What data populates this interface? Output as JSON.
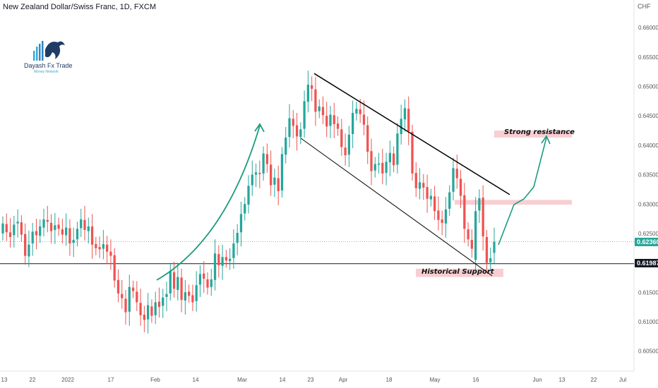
{
  "title": "New Zealand Dollar/Swiss Franc, 1D, FXCM",
  "currency": "CHF",
  "logo": {
    "name": "Dayash Fx Trade",
    "tagline": "Money Network"
  },
  "colors": {
    "up": "#26a69a",
    "down": "#ef5350",
    "zone": "#f7c6cb",
    "current_price_tag": "#26a69a",
    "support_price_tag": "#131722"
  },
  "zones": {
    "resistance_label": "Strong resistance",
    "support_label": "Historical Support"
  },
  "price_tags": {
    "current": "0.62360",
    "support": "0.61987"
  },
  "chart_data": {
    "type": "candlestick",
    "title": "New Zealand Dollar/Swiss Franc, 1D, FXCM",
    "y_axis": {
      "unit": "CHF",
      "range": [
        0.6016,
        0.6647
      ],
      "ticks": [
        "0.66000",
        "0.65500",
        "0.65000",
        "0.64500",
        "0.64000",
        "0.63500",
        "0.63000",
        "0.62500",
        "0.62000",
        "0.61500",
        "0.61000",
        "0.60500"
      ]
    },
    "x_axis": {
      "ticks": [
        "13",
        "22",
        "2022",
        "17",
        "Feb",
        "14",
        "Mar",
        "14",
        "23",
        "Apr",
        "18",
        "May",
        "16",
        "Jun",
        "13",
        "22",
        "Jul"
      ]
    },
    "current_price": 0.6236,
    "support_level": 0.61987,
    "resistance_zone": [
      0.6299,
      0.6307
    ],
    "support_zone": [
      0.6176,
      0.619
    ],
    "target_zone": [
      0.6413,
      0.6425
    ],
    "channel": {
      "upper": {
        "from": [
          "Mar 23",
          0.6522
        ],
        "to": [
          "Jun 2",
          0.6316
        ]
      },
      "lower": {
        "from": [
          "Mar 21",
          0.6412
        ],
        "to": [
          "May 24",
          0.6178
        ]
      }
    },
    "closes": [
      0.6267,
      0.6252,
      0.6244,
      0.6265,
      0.627,
      0.6248,
      0.6212,
      0.6231,
      0.6253,
      0.6247,
      0.6262,
      0.6274,
      0.627,
      0.6254,
      0.6264,
      0.6258,
      0.6248,
      0.626,
      0.6233,
      0.6239,
      0.6258,
      0.6274,
      0.6256,
      0.6262,
      0.6231,
      0.6225,
      0.6223,
      0.6232,
      0.6219,
      0.6212,
      0.617,
      0.6148,
      0.614,
      0.6116,
      0.6159,
      0.6152,
      0.6133,
      0.6111,
      0.6103,
      0.6128,
      0.611,
      0.6133,
      0.6125,
      0.6141,
      0.6147,
      0.6186,
      0.6156,
      0.6176,
      0.6137,
      0.615,
      0.6144,
      0.6133,
      0.6162,
      0.6181,
      0.6173,
      0.6158,
      0.6172,
      0.6216,
      0.6196,
      0.621,
      0.6204,
      0.6207,
      0.6233,
      0.6251,
      0.6283,
      0.63,
      0.6331,
      0.635,
      0.6354,
      0.6351,
      0.6386,
      0.6368,
      0.6332,
      0.6345,
      0.6322,
      0.6385,
      0.6413,
      0.6446,
      0.6433,
      0.6415,
      0.6427,
      0.6475,
      0.6503,
      0.6496,
      0.6457,
      0.6466,
      0.6451,
      0.6432,
      0.6452,
      0.6436,
      0.6428,
      0.6397,
      0.6383,
      0.6418,
      0.6455,
      0.6462,
      0.6453,
      0.6435,
      0.6389,
      0.6356,
      0.6368,
      0.6369,
      0.6352,
      0.6372,
      0.6387,
      0.6366,
      0.642,
      0.6445,
      0.6463,
      0.6424,
      0.6352,
      0.6327,
      0.6337,
      0.6328,
      0.6309,
      0.6314,
      0.6288,
      0.6273,
      0.6268,
      0.6291,
      0.632,
      0.6361,
      0.6344,
      0.6314,
      0.6258,
      0.624,
      0.6224,
      0.6288,
      0.631,
      0.6245,
      0.62,
      0.6208,
      0.6236
    ],
    "opens": [
      0.625,
      0.6266,
      0.6252,
      0.6247,
      0.6267,
      0.6269,
      0.6249,
      0.6211,
      0.6233,
      0.6254,
      0.6246,
      0.626,
      0.6273,
      0.6268,
      0.6256,
      0.6265,
      0.6257,
      0.6247,
      0.6259,
      0.6234,
      0.624,
      0.6259,
      0.6273,
      0.6254,
      0.6262,
      0.6232,
      0.6227,
      0.6224,
      0.6231,
      0.6219,
      0.6213,
      0.6171,
      0.6147,
      0.6139,
      0.6117,
      0.6158,
      0.6151,
      0.6132,
      0.6112,
      0.6104,
      0.6126,
      0.6111,
      0.6134,
      0.6127,
      0.6142,
      0.6148,
      0.6184,
      0.6154,
      0.6175,
      0.6136,
      0.6151,
      0.6145,
      0.6135,
      0.6163,
      0.6182,
      0.6172,
      0.6159,
      0.6171,
      0.6215,
      0.6195,
      0.621,
      0.6203,
      0.6208,
      0.6234,
      0.6252,
      0.6284,
      0.6299,
      0.6332,
      0.635,
      0.6353,
      0.6352,
      0.6385,
      0.6367,
      0.6333,
      0.6344,
      0.6323,
      0.6384,
      0.6414,
      0.6445,
      0.6434,
      0.6414,
      0.6428,
      0.6474,
      0.6502,
      0.6495,
      0.6458,
      0.6465,
      0.645,
      0.6433,
      0.6451,
      0.6437,
      0.6427,
      0.6396,
      0.6384,
      0.6419,
      0.6454,
      0.6461,
      0.6452,
      0.6434,
      0.639,
      0.6357,
      0.6367,
      0.637,
      0.6353,
      0.6371,
      0.6386,
      0.6367,
      0.6419,
      0.6444,
      0.6462,
      0.6423,
      0.6353,
      0.6326,
      0.6336,
      0.6329,
      0.6308,
      0.6313,
      0.6289,
      0.6274,
      0.6267,
      0.6292,
      0.6321,
      0.636,
      0.6343,
      0.6315,
      0.6257,
      0.6239,
      0.6205,
      0.6289,
      0.6311,
      0.6244,
      0.6201,
      0.6217
    ]
  }
}
